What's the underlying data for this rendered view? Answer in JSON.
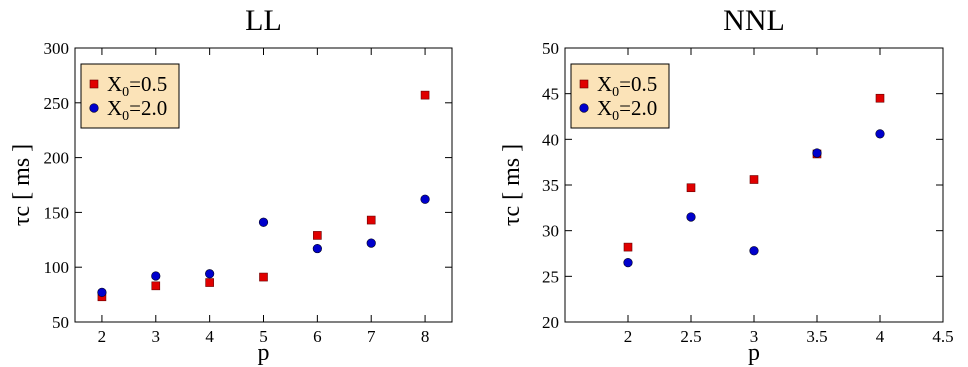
{
  "chart_data": [
    {
      "type": "scatter",
      "title": "LL",
      "xlabel": "p",
      "ylabel": "τc [ ms ]",
      "xlim": [
        1.5,
        8.5
      ],
      "ylim": [
        50,
        300
      ],
      "xticks": [
        2,
        3,
        4,
        5,
        6,
        7,
        8
      ],
      "yticks": [
        50,
        100,
        150,
        200,
        250,
        300
      ],
      "grid": false,
      "legend_position": "top-left",
      "series": [
        {
          "name": "X0=0.5",
          "marker": "square",
          "color": "#e00000",
          "points": [
            [
              2,
              73
            ],
            [
              3,
              83
            ],
            [
              4,
              86
            ],
            [
              5,
              91
            ],
            [
              6,
              129
            ],
            [
              7,
              143
            ],
            [
              8,
              257
            ]
          ]
        },
        {
          "name": "X0=2.0",
          "marker": "circle",
          "color": "#0000cc",
          "points": [
            [
              2,
              77
            ],
            [
              3,
              92
            ],
            [
              4,
              94
            ],
            [
              5,
              141
            ],
            [
              6,
              117
            ],
            [
              7,
              122
            ],
            [
              8,
              162
            ]
          ]
        }
      ]
    },
    {
      "type": "scatter",
      "title": "NNL",
      "xlabel": "p",
      "ylabel": "τc [ ms ]",
      "xlim": [
        1.5,
        4.5
      ],
      "ylim": [
        20,
        50
      ],
      "xticks": [
        "2",
        "2.5",
        "3",
        "3.5",
        "4",
        "4.5"
      ],
      "yticks": [
        20,
        25,
        30,
        35,
        40,
        45,
        50
      ],
      "grid": false,
      "legend_position": "top-left",
      "series": [
        {
          "name": "X0=0.5",
          "marker": "square",
          "color": "#e00000",
          "points": [
            [
              2,
              28.2
            ],
            [
              2.5,
              34.7
            ],
            [
              3,
              35.6
            ],
            [
              3.5,
              38.4
            ],
            [
              4,
              44.5
            ]
          ]
        },
        {
          "name": "X0=2.0",
          "marker": "circle",
          "color": "#0000cc",
          "points": [
            [
              2,
              26.5
            ],
            [
              2.5,
              31.5
            ],
            [
              3,
              27.8
            ],
            [
              3.5,
              38.5
            ],
            [
              4,
              40.6
            ]
          ]
        }
      ]
    }
  ]
}
